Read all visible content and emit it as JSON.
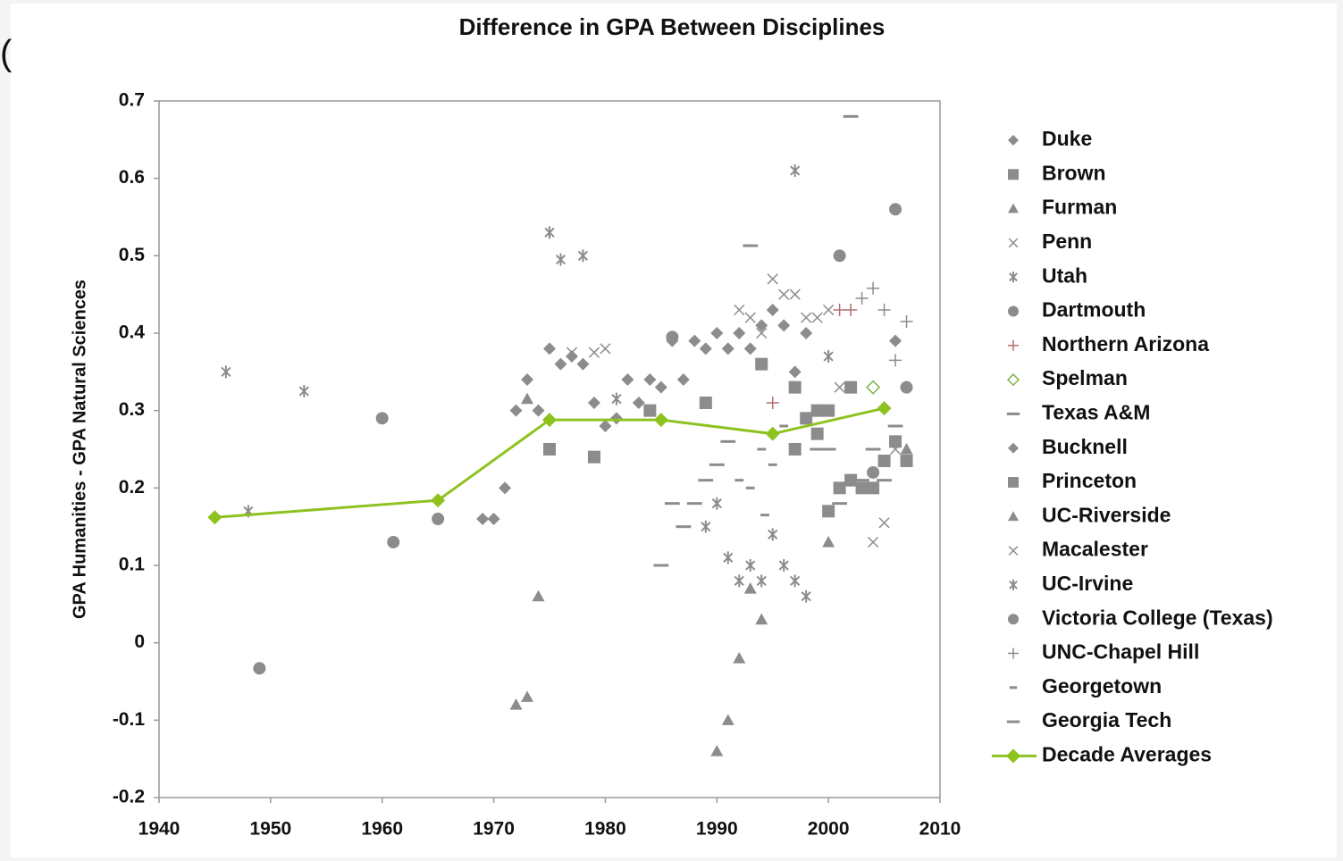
{
  "chart_data": {
    "type": "scatter",
    "title": "Difference in GPA Between Disciplines",
    "annotation": "(",
    "ylabel": "GPA Humanities - GPA Natural Sciences",
    "xlim": [
      1940,
      2010
    ],
    "xticks": [
      1940,
      1950,
      1960,
      1970,
      1980,
      1990,
      2000,
      2010
    ],
    "ylim": [
      -0.2,
      0.7
    ],
    "yticks": [
      -0.2,
      -0.1,
      0,
      0.1,
      0.2,
      0.3,
      0.4,
      0.5,
      0.6,
      0.7
    ],
    "legend": "right",
    "series": [
      {
        "name": "Duke",
        "color": "#8c8c8c",
        "marker": "diamond",
        "x": [
          1969,
          1970,
          1971,
          1972,
          1973,
          1974,
          1975,
          1976,
          1977,
          1978,
          1979,
          1980,
          1981,
          1982,
          1983,
          1984
        ],
        "values": [
          0.16,
          0.16,
          0.2,
          0.3,
          0.34,
          0.3,
          0.38,
          0.36,
          0.37,
          0.36,
          0.31,
          0.28,
          0.29,
          0.34,
          0.31,
          0.34
        ]
      },
      {
        "name": "Brown",
        "color": "#8c8c8c",
        "marker": "square",
        "x": [
          1975,
          1979,
          1984,
          1989,
          1994,
          1997
        ],
        "values": [
          0.25,
          0.24,
          0.3,
          0.31,
          0.36,
          0.33
        ]
      },
      {
        "name": "Furman",
        "color": "#8c8c8c",
        "marker": "triangle",
        "x": [
          1972,
          1973,
          1974,
          1973
        ],
        "values": [
          -0.08,
          -0.07,
          0.06,
          0.315
        ]
      },
      {
        "name": "Penn",
        "color": "#8c8c8c",
        "marker": "x",
        "x": [
          1977,
          1979,
          1980,
          1992,
          1993,
          1994,
          1995,
          1996
        ],
        "values": [
          0.375,
          0.375,
          0.38,
          0.43,
          0.42,
          0.4,
          0.47,
          0.45
        ]
      },
      {
        "name": "Utah",
        "color": "#8c8c8c",
        "marker": "asterisk",
        "x": [
          1946,
          1948,
          1953,
          1975,
          1976,
          1978,
          1981,
          1989,
          1990,
          1991
        ],
        "values": [
          0.35,
          0.17,
          0.325,
          0.53,
          0.495,
          0.5,
          0.315,
          0.15,
          0.18,
          0.11
        ]
      },
      {
        "name": "Dartmouth",
        "color": "#8c8c8c",
        "marker": "circle",
        "x": [
          1949,
          1960,
          1961,
          1965,
          1986
        ],
        "values": [
          -0.033,
          0.29,
          0.13,
          0.16,
          0.395
        ]
      },
      {
        "name": "Northern Arizona",
        "color": "#b07070",
        "marker": "plus",
        "x": [
          1995,
          2001,
          2002
        ],
        "values": [
          0.31,
          0.43,
          0.43
        ]
      },
      {
        "name": "Spelman",
        "color": "#7ab648",
        "marker": "diamond-open",
        "x": [
          2004
        ],
        "values": [
          0.33
        ]
      },
      {
        "name": "Texas A&M",
        "color": "#8c8c8c",
        "marker": "dash",
        "x": [
          1985,
          1986,
          1987,
          1988,
          1989,
          1990,
          1991,
          1993
        ],
        "values": [
          0.1,
          0.18,
          0.15,
          0.18,
          0.21,
          0.23,
          0.26,
          0.513
        ]
      },
      {
        "name": "Bucknell",
        "color": "#8c8c8c",
        "marker": "diamond",
        "x": [
          1985,
          1986,
          1987,
          1988,
          1989,
          1990,
          1991,
          1992,
          1993,
          1994,
          1995,
          1996,
          1997,
          1998,
          2006
        ],
        "values": [
          0.33,
          0.39,
          0.34,
          0.39,
          0.38,
          0.4,
          0.38,
          0.4,
          0.38,
          0.41,
          0.43,
          0.41,
          0.35,
          0.4,
          0.39
        ]
      },
      {
        "name": "Princeton",
        "color": "#8c8c8c",
        "marker": "square",
        "x": [
          1997,
          1998,
          1999,
          1999,
          2000,
          2000,
          2001,
          2002,
          2002,
          2003,
          2004,
          2005,
          2006,
          2007
        ],
        "values": [
          0.25,
          0.29,
          0.3,
          0.27,
          0.3,
          0.17,
          0.2,
          0.33,
          0.21,
          0.2,
          0.2,
          0.235,
          0.26,
          0.235
        ]
      },
      {
        "name": "UC-Riverside",
        "color": "#8c8c8c",
        "marker": "triangle",
        "x": [
          1990,
          1991,
          1992,
          1993,
          1994,
          2000,
          2007
        ],
        "values": [
          -0.14,
          -0.1,
          -0.02,
          0.07,
          0.03,
          0.13,
          0.25
        ]
      },
      {
        "name": "Macalester",
        "color": "#8c8c8c",
        "marker": "x",
        "x": [
          1997,
          1998,
          1999,
          2000,
          2001,
          2004,
          2005,
          2006
        ],
        "values": [
          0.45,
          0.42,
          0.42,
          0.43,
          0.33,
          0.13,
          0.155,
          0.25
        ]
      },
      {
        "name": "UC-Irvine",
        "color": "#8c8c8c",
        "marker": "asterisk",
        "x": [
          1992,
          1993,
          1994,
          1995,
          1996,
          1997,
          1997,
          1998,
          2000,
          2002
        ],
        "values": [
          0.08,
          0.1,
          0.08,
          0.14,
          0.1,
          0.08,
          0.61,
          0.06,
          0.37,
          0.21
        ]
      },
      {
        "name": "Victoria College (Texas)",
        "color": "#8c8c8c",
        "marker": "circle",
        "x": [
          2001,
          2004,
          2006,
          2007
        ],
        "values": [
          0.5,
          0.22,
          0.56,
          0.33
        ]
      },
      {
        "name": "UNC-Chapel Hill",
        "color": "#8c8c8c",
        "marker": "plus",
        "x": [
          2003,
          2004,
          2005,
          2006,
          2007
        ],
        "values": [
          0.445,
          0.458,
          0.43,
          0.365,
          0.415
        ]
      },
      {
        "name": "Georgetown",
        "color": "#8c8c8c",
        "marker": "dash-small",
        "x": [
          1992,
          1993,
          1994,
          1994.3,
          1995,
          1996
        ],
        "values": [
          0.21,
          0.2,
          0.25,
          0.165,
          0.23,
          0.28
        ]
      },
      {
        "name": "Georgia Tech",
        "color": "#8c8c8c",
        "marker": "dash",
        "x": [
          1999,
          2000,
          2001,
          2002,
          2003,
          2004,
          2005,
          2006
        ],
        "values": [
          0.25,
          0.25,
          0.18,
          0.68,
          0.21,
          0.25,
          0.21,
          0.28
        ]
      },
      {
        "name": "Decade Averages",
        "color": "#8dc21f",
        "marker": "diamond",
        "line": true,
        "x": [
          1945,
          1965,
          1975,
          1985,
          1995,
          2005
        ],
        "values": [
          0.162,
          0.184,
          0.288,
          0.288,
          0.27,
          0.303
        ]
      }
    ]
  }
}
